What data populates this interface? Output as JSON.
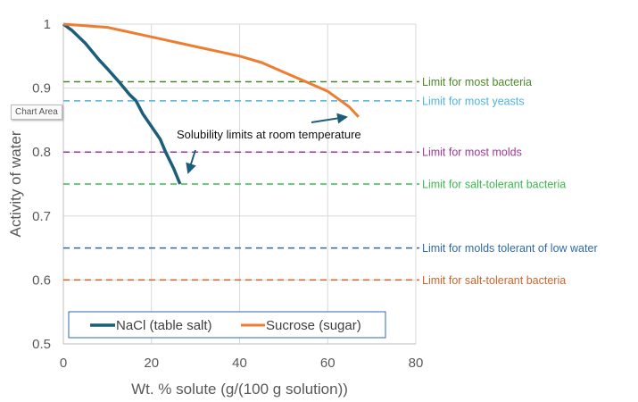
{
  "tooltip": "Chart Area",
  "chart_data": {
    "type": "line",
    "xlabel": "Wt. % solute (g/(100 g solution))",
    "ylabel": "Activity of water",
    "xlim": [
      0,
      80
    ],
    "ylim": [
      0.5,
      1
    ],
    "xticks": [
      0,
      20,
      40,
      60,
      80
    ],
    "yticks": [
      0.5,
      0.6,
      0.7,
      0.8,
      0.9,
      1
    ],
    "grid": true,
    "legend": "bottom-inside",
    "series": [
      {
        "name": "NaCl (table salt)",
        "color": "#1b5e7a",
        "x": [
          0,
          2,
          5,
          8,
          10,
          12.6,
          15,
          16.5,
          18,
          20,
          22,
          23.2,
          25,
          26.5
        ],
        "y": [
          1,
          0.99,
          0.97,
          0.945,
          0.93,
          0.91,
          0.89,
          0.88,
          0.86,
          0.84,
          0.82,
          0.8,
          0.775,
          0.75
        ]
      },
      {
        "name": "Sucrose (sugar)",
        "color": "#ed7d31",
        "x": [
          0,
          10,
          20,
          30,
          40,
          45,
          50,
          55,
          60,
          63,
          65,
          67
        ],
        "y": [
          1,
          0.995,
          0.98,
          0.965,
          0.95,
          0.94,
          0.925,
          0.91,
          0.895,
          0.88,
          0.87,
          0.855
        ]
      }
    ],
    "reference_lines": [
      {
        "y": 0.91,
        "label": "Limit for most bacteria",
        "color": "#4a8a2a"
      },
      {
        "y": 0.88,
        "label": "Limit for most yeasts",
        "color": "#4db3e0"
      },
      {
        "y": 0.8,
        "label": "Limit for most molds",
        "color": "#9b3a96"
      },
      {
        "y": 0.75,
        "label": "Limit for salt-tolerant bacteria",
        "color": "#3cb84e"
      },
      {
        "y": 0.65,
        "label": "Limit for molds tolerant of low water",
        "color": "#2f6aa8"
      },
      {
        "y": 0.6,
        "label": "Limit for salt-tolerant bacteria",
        "color": "#d0622a"
      }
    ],
    "annotation": "Solubility limits at room temperature"
  }
}
